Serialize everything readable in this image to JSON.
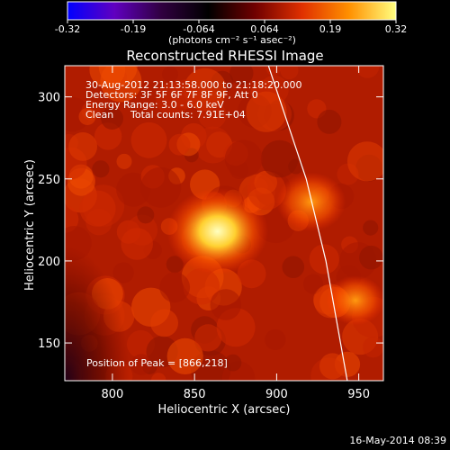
{
  "chart_data": {
    "type": "heatmap",
    "title": "Reconstructed RHESSI Image",
    "xlabel": "Heliocentric X (arcsec)",
    "ylabel": "Heliocentric Y (arcsec)",
    "xlim": [
      771,
      965
    ],
    "ylim": [
      127,
      319
    ],
    "x_ticks": [
      800,
      850,
      900,
      950
    ],
    "y_ticks": [
      150,
      200,
      250,
      300
    ],
    "colorbar": {
      "range": [
        -0.32,
        0.32
      ],
      "ticks": [
        "-0.32",
        "-0.19",
        "-0.064",
        "0.064",
        "0.19",
        "0.32"
      ],
      "units": "(photons cm⁻² s⁻¹ asec⁻²)",
      "colors": [
        "#0000ff",
        "#6000c0",
        "#300040",
        "#000000",
        "#700000",
        "#e03000",
        "#ff9000",
        "#ffff80"
      ]
    },
    "annotations": [
      "30-Aug-2012 21:13:58.000 to 21:18:20.000",
      "Detectors: 3F 5F 6F 7F 8F 9F, Att 0",
      "Energy Range: 3.0 - 6.0 keV",
      "Clean",
      "Total counts: 7.91E+04"
    ],
    "peak_label": "Position of Peak = [866,218]",
    "peak": {
      "x": 866,
      "y": 218
    },
    "sources": [
      {
        "x": 864,
        "y": 218,
        "value": 0.32
      },
      {
        "x": 921,
        "y": 236,
        "value": 0.17
      },
      {
        "x": 948,
        "y": 176,
        "value": 0.12
      }
    ],
    "limb_arc": [
      {
        "x": 895,
        "y": 319
      },
      {
        "x": 918,
        "y": 250
      },
      {
        "x": 930,
        "y": 200
      },
      {
        "x": 943,
        "y": 127
      }
    ]
  },
  "footer_timestamp": "16-May-2014 08:39"
}
